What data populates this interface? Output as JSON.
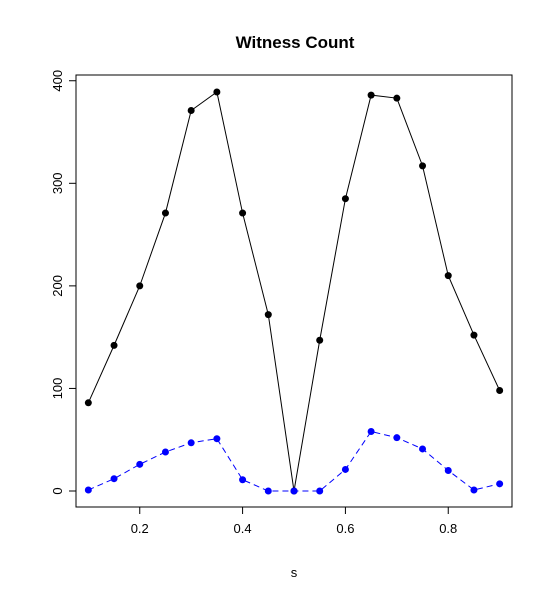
{
  "chart_data": {
    "type": "line",
    "title": "Witness Count",
    "xlabel": "s",
    "ylabel": "",
    "xlim": [
      0.076,
      0.924
    ],
    "ylim": [
      -15.6,
      405.6
    ],
    "xticks": [
      "0.2",
      "0.4",
      "0.6",
      "0.8"
    ],
    "yticks": [
      "0",
      "100",
      "200",
      "300",
      "400"
    ],
    "grid": false,
    "x": [
      0.1,
      0.15,
      0.2,
      0.25,
      0.3,
      0.35,
      0.4,
      0.45,
      0.5,
      0.55,
      0.6,
      0.65,
      0.7,
      0.75,
      0.8,
      0.85,
      0.9
    ],
    "series": [
      {
        "color": "#000000",
        "line_style": "solid",
        "values": [
          86,
          142,
          200,
          271,
          371,
          389,
          271,
          172,
          0,
          147,
          285,
          386,
          383,
          317,
          210,
          152,
          98
        ]
      },
      {
        "color": "#0000FF",
        "line_style": "dashed",
        "values": [
          1,
          12,
          26,
          38,
          47,
          51,
          11,
          0,
          0,
          0,
          21,
          58,
          52,
          41,
          20,
          1,
          7
        ]
      }
    ]
  }
}
